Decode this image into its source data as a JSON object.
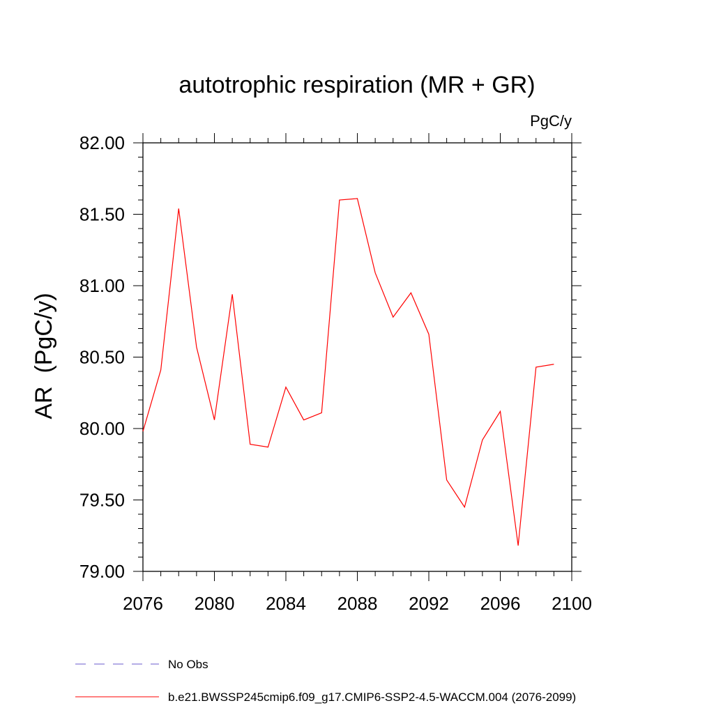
{
  "chart_data": {
    "type": "line",
    "title": "autotrophic respiration (MR + GR)",
    "units_label": "PgC/y",
    "ylabel": "AR  (PgC/y)",
    "xlabel": "",
    "xlim": [
      2076,
      2100
    ],
    "ylim": [
      79.0,
      82.0
    ],
    "x_ticks": [
      2076,
      2080,
      2084,
      2088,
      2092,
      2096,
      2100
    ],
    "y_ticks": [
      "79.00",
      "79.50",
      "80.00",
      "80.50",
      "81.00",
      "81.50",
      "82.00"
    ],
    "grid": false,
    "legend_position": "bottom",
    "series": [
      {
        "name": "b.e21.BWSSP245cmip6.f09_g17.CMIP6-SSP2-4.5-WACCM.004 (2076-2099)",
        "color": "#ff0000",
        "style": "solid",
        "x": [
          2076,
          2077,
          2078,
          2079,
          2080,
          2081,
          2082,
          2083,
          2084,
          2085,
          2086,
          2087,
          2088,
          2089,
          2090,
          2091,
          2092,
          2093,
          2094,
          2095,
          2096,
          2097,
          2098,
          2099
        ],
        "y": [
          79.98,
          80.41,
          81.54,
          80.57,
          80.06,
          80.94,
          79.89,
          79.87,
          80.29,
          80.06,
          80.11,
          81.6,
          81.61,
          81.09,
          80.78,
          80.95,
          80.66,
          79.64,
          79.45,
          79.92,
          80.12,
          79.18,
          80.43,
          80.45
        ]
      },
      {
        "name": "No Obs",
        "color": "#6a5acd",
        "style": "dashed",
        "x": [],
        "y": []
      }
    ]
  }
}
